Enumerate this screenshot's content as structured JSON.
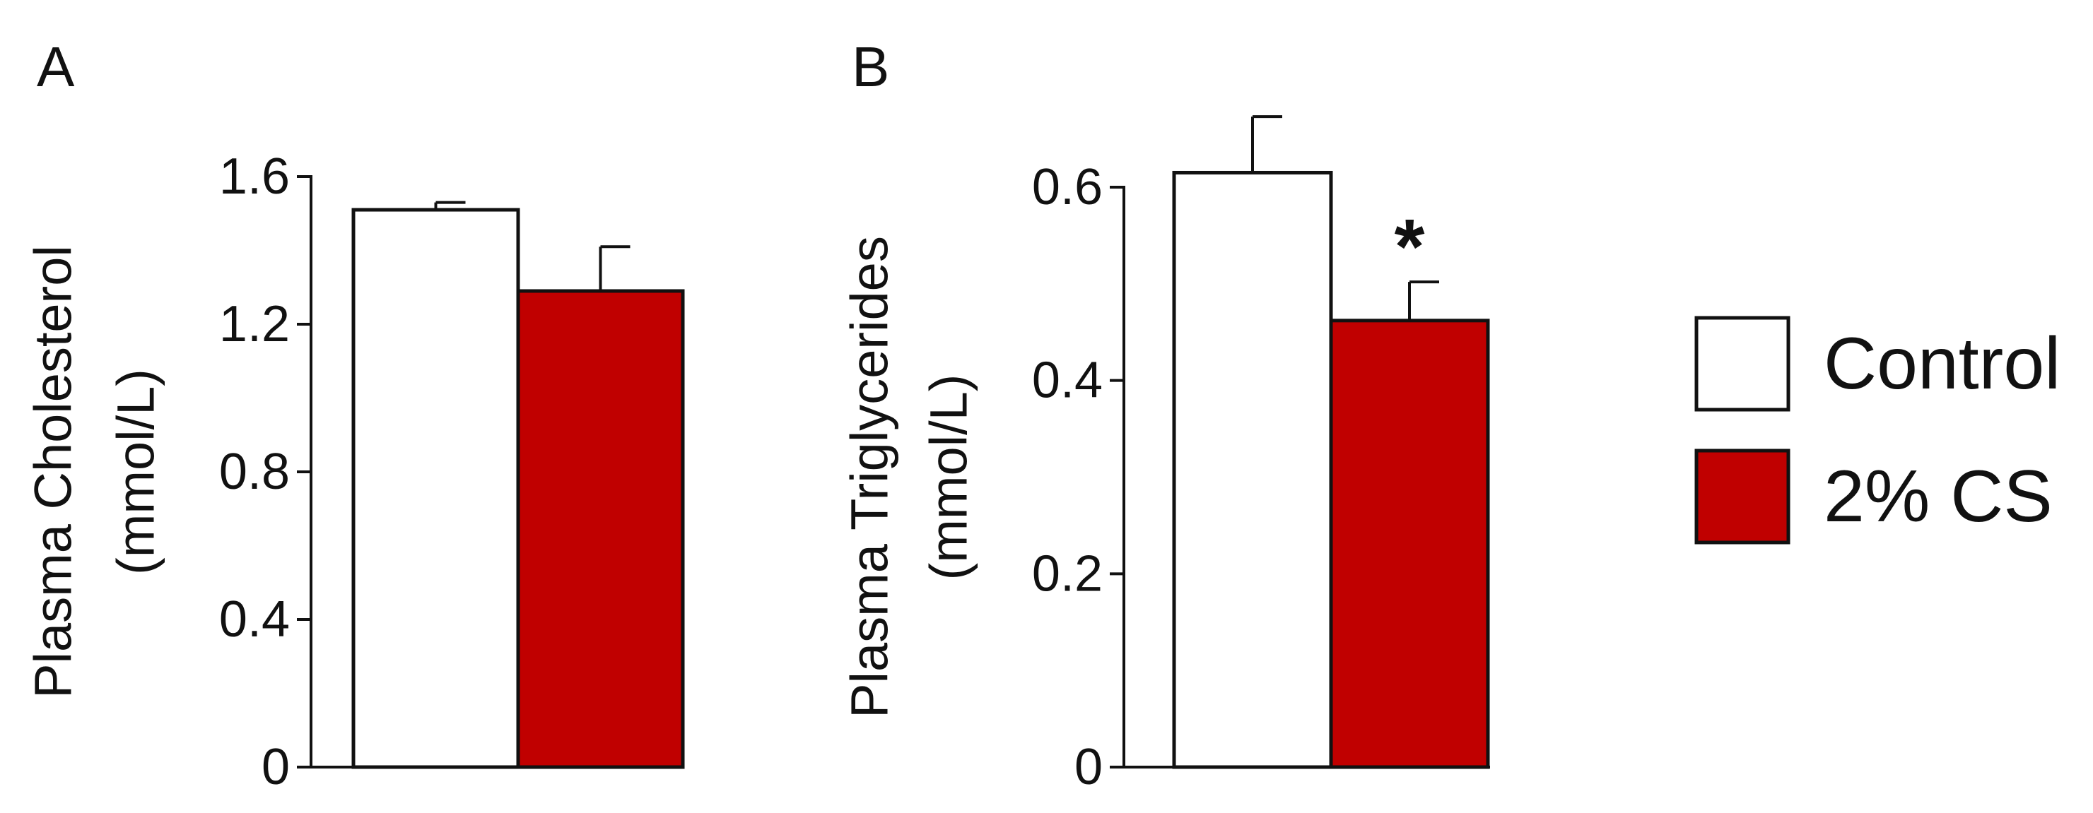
{
  "chart_data": [
    {
      "type": "bar",
      "panel_label": "A",
      "ylabel_lines": [
        "Plasma Cholesterol",
        "(mmol/L)"
      ],
      "categories": [
        "Control",
        "2% CS"
      ],
      "values": [
        1.51,
        1.29
      ],
      "errors": [
        0.02,
        0.12
      ],
      "colors": [
        "#ffffff",
        "#c00000"
      ],
      "ylim": [
        0,
        1.6
      ],
      "yticks": [
        0,
        0.4,
        0.8,
        1.2,
        1.6
      ],
      "ytick_labels": [
        "0",
        "0.4",
        "0.8",
        "1.2",
        "1.6"
      ],
      "annotations": [
        "",
        ""
      ]
    },
    {
      "type": "bar",
      "panel_label": "B",
      "ylabel_lines": [
        "Plasma Triglycerides",
        "(mmol/L)"
      ],
      "categories": [
        "Control",
        "2% CS"
      ],
      "values": [
        0.615,
        0.462
      ],
      "errors": [
        0.058,
        0.04
      ],
      "colors": [
        "#ffffff",
        "#c00000"
      ],
      "ylim": [
        0,
        0.6
      ],
      "yticks": [
        0,
        0.2,
        0.4,
        0.6
      ],
      "ytick_labels": [
        "0",
        "0.2",
        "0.4",
        "0.6"
      ],
      "annotations": [
        "",
        "*"
      ]
    }
  ],
  "legend": {
    "placement": "right",
    "items": [
      {
        "label": "Control",
        "color": "#ffffff"
      },
      {
        "label": "2% CS",
        "color": "#c00000"
      }
    ]
  }
}
